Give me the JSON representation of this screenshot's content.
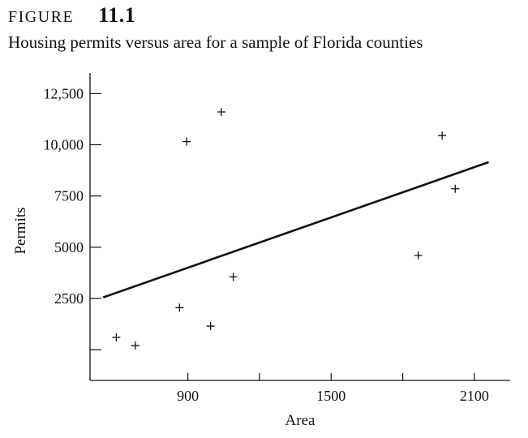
{
  "figure": {
    "label": "FIGURE",
    "number": "11.1",
    "caption": "Housing permits versus area for a sample of Florida counties"
  },
  "chart_data": {
    "type": "scatter",
    "title": "Housing permits versus area for a sample of Florida counties",
    "xlabel": "Area",
    "ylabel": "Permits",
    "xlim": [
      490,
      2250
    ],
    "ylim": [
      -1500,
      13500
    ],
    "x_tick_values": [
      900,
      1200,
      1500,
      1800,
      2100
    ],
    "x_tick_labels": [
      "900",
      "",
      "1500",
      "",
      "2100"
    ],
    "y_tick_values": [
      0,
      2500,
      5000,
      7500,
      10000,
      12500
    ],
    "y_tick_labels": [
      "",
      "2500",
      "5000",
      "7500",
      "10,000",
      "12,500"
    ],
    "grid": false,
    "series": [
      {
        "points": [
          {
            "x": 600,
            "y": 600
          },
          {
            "x": 680,
            "y": 200
          },
          {
            "x": 865,
            "y": 2050
          },
          {
            "x": 895,
            "y": 10150
          },
          {
            "x": 995,
            "y": 1150
          },
          {
            "x": 1040,
            "y": 11600
          },
          {
            "x": 1090,
            "y": 3550
          },
          {
            "x": 1865,
            "y": 4600
          },
          {
            "x": 1965,
            "y": 10450
          },
          {
            "x": 2020,
            "y": 7850
          }
        ]
      }
    ],
    "trend_line": {
      "x": [
        545,
        2160
      ],
      "y": [
        2550,
        9150
      ]
    }
  }
}
